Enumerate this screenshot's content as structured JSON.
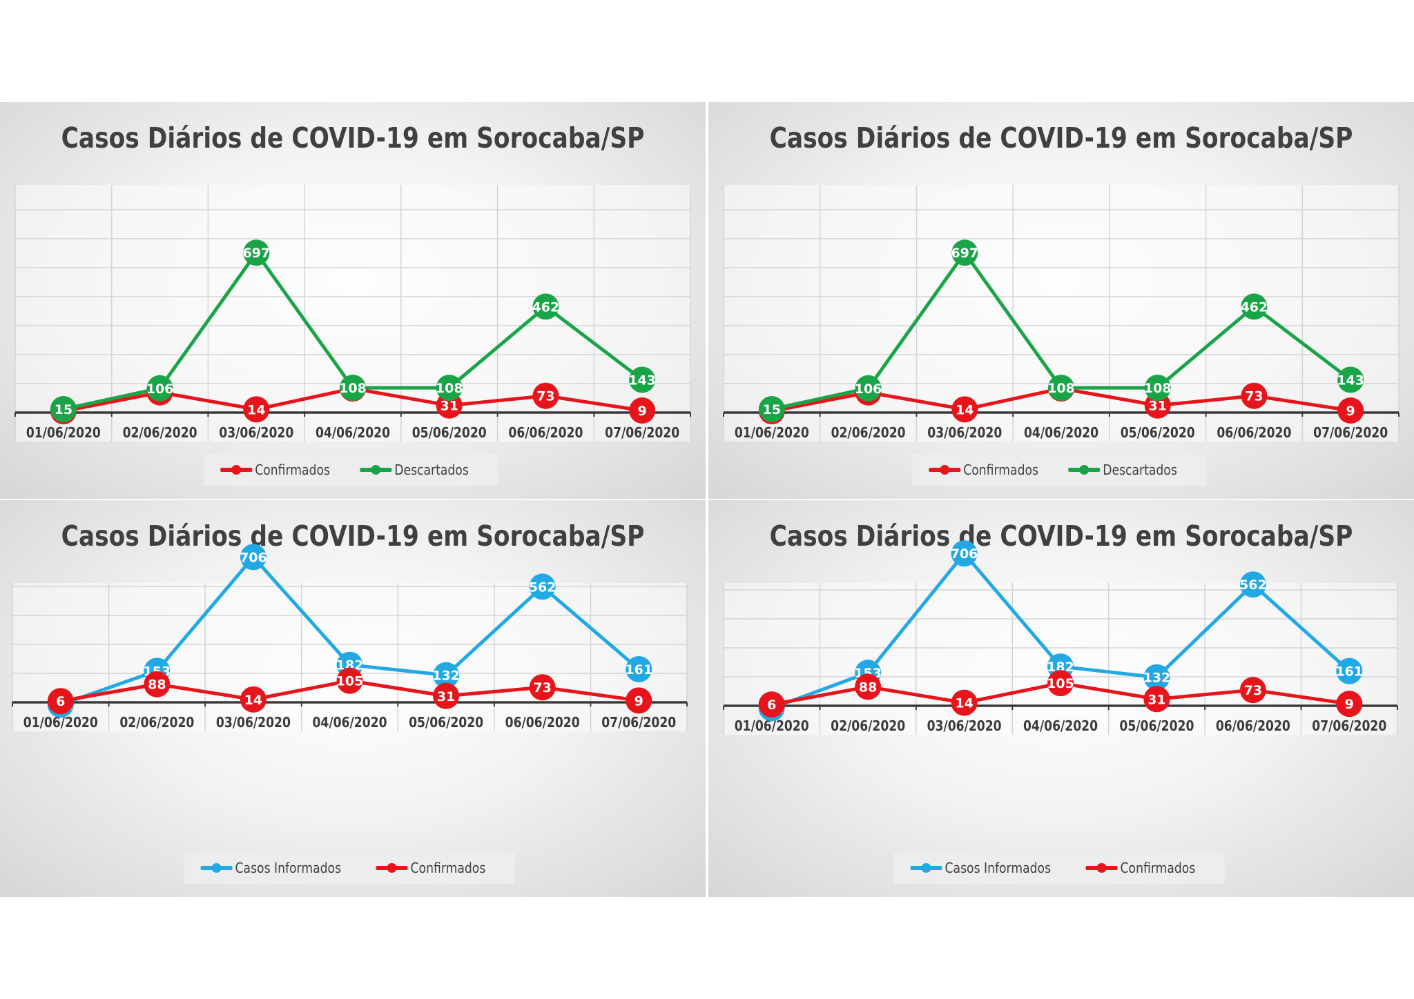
{
  "chart_data": [
    {
      "type": "line",
      "title": "Casos Diários de COVID-19 em Sorocaba/SP",
      "categories": [
        "01/06/2020",
        "02/06/2020",
        "03/06/2020",
        "04/06/2020",
        "05/06/2020",
        "06/06/2020",
        "07/06/2020"
      ],
      "series": [
        {
          "name": "Confirmados",
          "color": "#e8141b",
          "values": [
            6,
            88,
            14,
            105,
            31,
            73,
            9
          ]
        },
        {
          "name": "Descartados",
          "color": "#1aa448",
          "values": [
            15,
            106,
            697,
            108,
            108,
            462,
            143
          ]
        }
      ],
      "ylim": [
        0,
        800
      ],
      "grid": true,
      "legend": "bottom"
    },
    {
      "type": "line",
      "title": "Casos Diários de COVID-19 em Sorocaba/SP",
      "categories": [
        "01/06/2020",
        "02/06/2020",
        "03/06/2020",
        "04/06/2020",
        "05/06/2020",
        "06/06/2020",
        "07/06/2020"
      ],
      "series": [
        {
          "name": "Confirmados",
          "color": "#e8141b",
          "values": [
            6,
            88,
            14,
            105,
            31,
            73,
            9
          ]
        },
        {
          "name": "Descartados",
          "color": "#1aa448",
          "values": [
            15,
            106,
            697,
            108,
            108,
            462,
            143
          ]
        }
      ],
      "ylim": [
        0,
        800
      ],
      "grid": true,
      "legend": "bottom"
    },
    {
      "type": "line",
      "title": "Casos Diários de COVID-19 em Sorocaba/SP",
      "categories": [
        "01/06/2020",
        "02/06/2020",
        "03/06/2020",
        "04/06/2020",
        "05/06/2020",
        "06/06/2020",
        "07/06/2020"
      ],
      "series": [
        {
          "name": "Casos Informados",
          "color": "#22a9e4",
          "values": [
            -11,
            153,
            706,
            182,
            132,
            562,
            161
          ]
        },
        {
          "name": "Confirmados",
          "color": "#e8141b",
          "values": [
            6,
            88,
            14,
            105,
            31,
            73,
            9
          ]
        }
      ],
      "ylim": [
        -100,
        800
      ],
      "grid": true,
      "legend": "bottom"
    },
    {
      "type": "line",
      "title": "Casos Diários de COVID-19 em Sorocaba/SP",
      "categories": [
        "01/06/2020",
        "02/06/2020",
        "03/06/2020",
        "04/06/2020",
        "05/06/2020",
        "06/06/2020",
        "07/06/2020"
      ],
      "series": [
        {
          "name": "Casos Informados",
          "color": "#22a9e4",
          "values": [
            -11,
            153,
            706,
            182,
            132,
            562,
            161
          ]
        },
        {
          "name": "Confirmados",
          "color": "#e8141b",
          "values": [
            6,
            88,
            14,
            105,
            31,
            73,
            9
          ]
        }
      ],
      "ylim": [
        -100,
        800
      ],
      "grid": true,
      "legend": "bottom"
    }
  ]
}
